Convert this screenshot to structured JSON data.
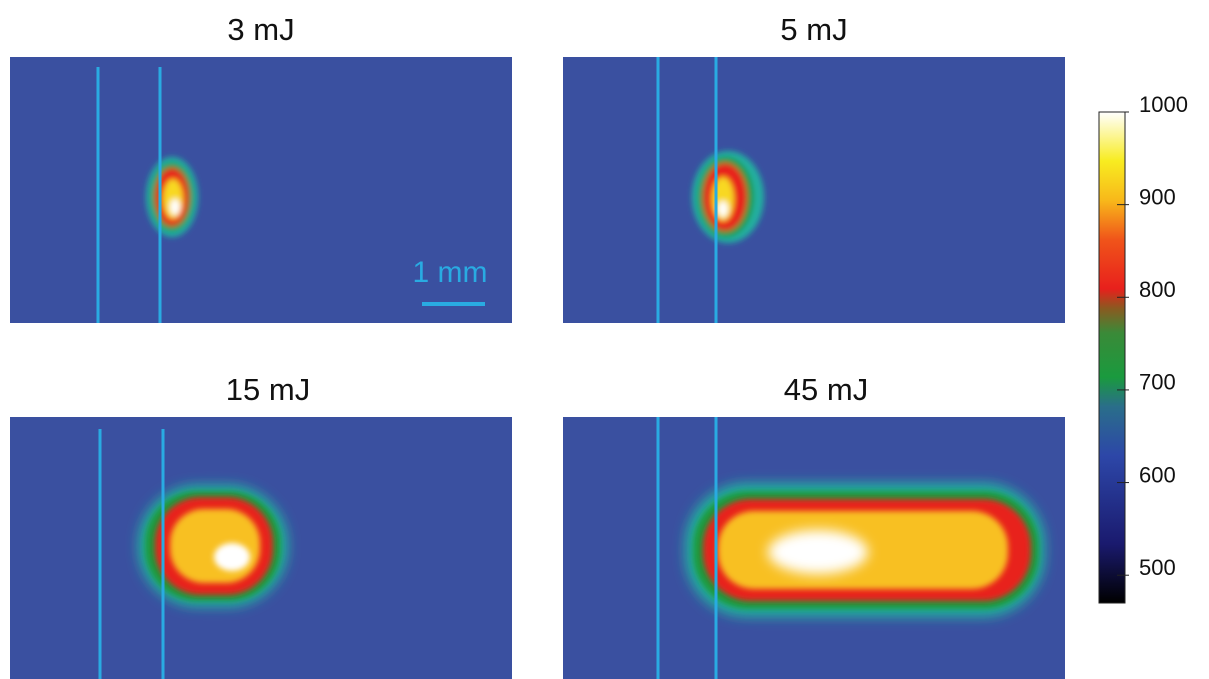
{
  "panels": [
    {
      "title": "3 mJ"
    },
    {
      "title": "5 mJ"
    },
    {
      "title": "15 mJ"
    },
    {
      "title": "45 mJ"
    }
  ],
  "scale_bar": {
    "label": "1 mm"
  },
  "colorbar": {
    "range": [
      470,
      1000
    ],
    "ticks": [
      500,
      600,
      700,
      800,
      900,
      1000
    ]
  }
}
